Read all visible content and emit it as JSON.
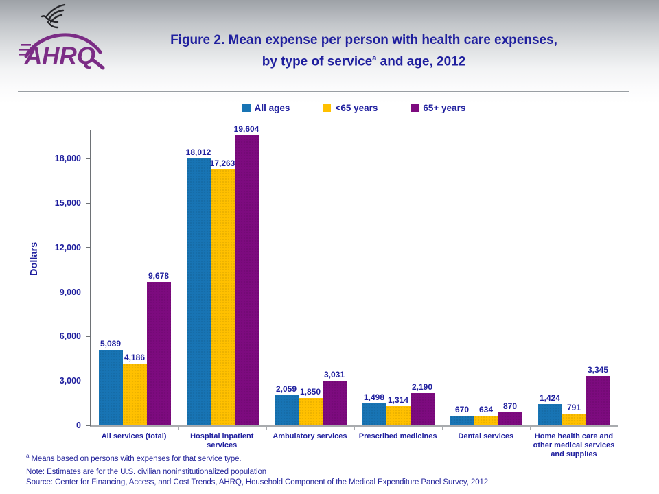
{
  "slide": {
    "logo": {
      "wordmark": "AHRQ"
    },
    "title": {
      "line1": "Figure 2. Mean expense per person with health care expenses,",
      "line2_pre": "by type of service",
      "line2_sup": "a",
      "line2_post": " and age, 2012"
    }
  },
  "chart_data": {
    "type": "bar",
    "title": "Figure 2. Mean expense per person with health care expenses, by type of service and age, 2012",
    "xlabel": "",
    "ylabel": "Dollars",
    "ylim": [
      0,
      21000
    ],
    "ytick_interval": 3000,
    "ytick_labels": [
      "0",
      "3,000",
      "6,000",
      "9,000",
      "12,000",
      "15,000",
      "18,000"
    ],
    "grid": false,
    "legend_position": "top",
    "categories": [
      "All services (total)",
      "Hospital inpatient services",
      "Ambulatory services",
      "Prescribed medicines",
      "Dental services",
      "Home health care and other medical services and supplies"
    ],
    "series": [
      {
        "name": "All ages",
        "color": "#1874B4",
        "values": [
          5089,
          18012,
          2059,
          1498,
          670,
          1424
        ]
      },
      {
        "name": "<65 years",
        "color": "#FFC000",
        "values": [
          4186,
          17263,
          1850,
          1314,
          634,
          791
        ]
      },
      {
        "name": "65+ years",
        "color": "#7D0B7F",
        "values": [
          9678,
          19604,
          3031,
          2190,
          870,
          3345
        ]
      }
    ]
  },
  "footnotes": {
    "a_sup": "a",
    "a_text": " Means based on persons with expenses for that service type.",
    "note": "Note: Estimates are for the U.S. civilian noninstitutionalized population",
    "source": "Source: Center for Financing, Access, and Cost Trends, AHRQ, Household Component of the Medical Expenditure Panel Survey, 2012"
  },
  "colors": {
    "text_navy": "#1F1F9E",
    "bar_all_ages": "#1874B4",
    "bar_under65": "#FFC000",
    "bar_over65": "#7D0B7F",
    "logo_purple": "#7B2C85"
  }
}
